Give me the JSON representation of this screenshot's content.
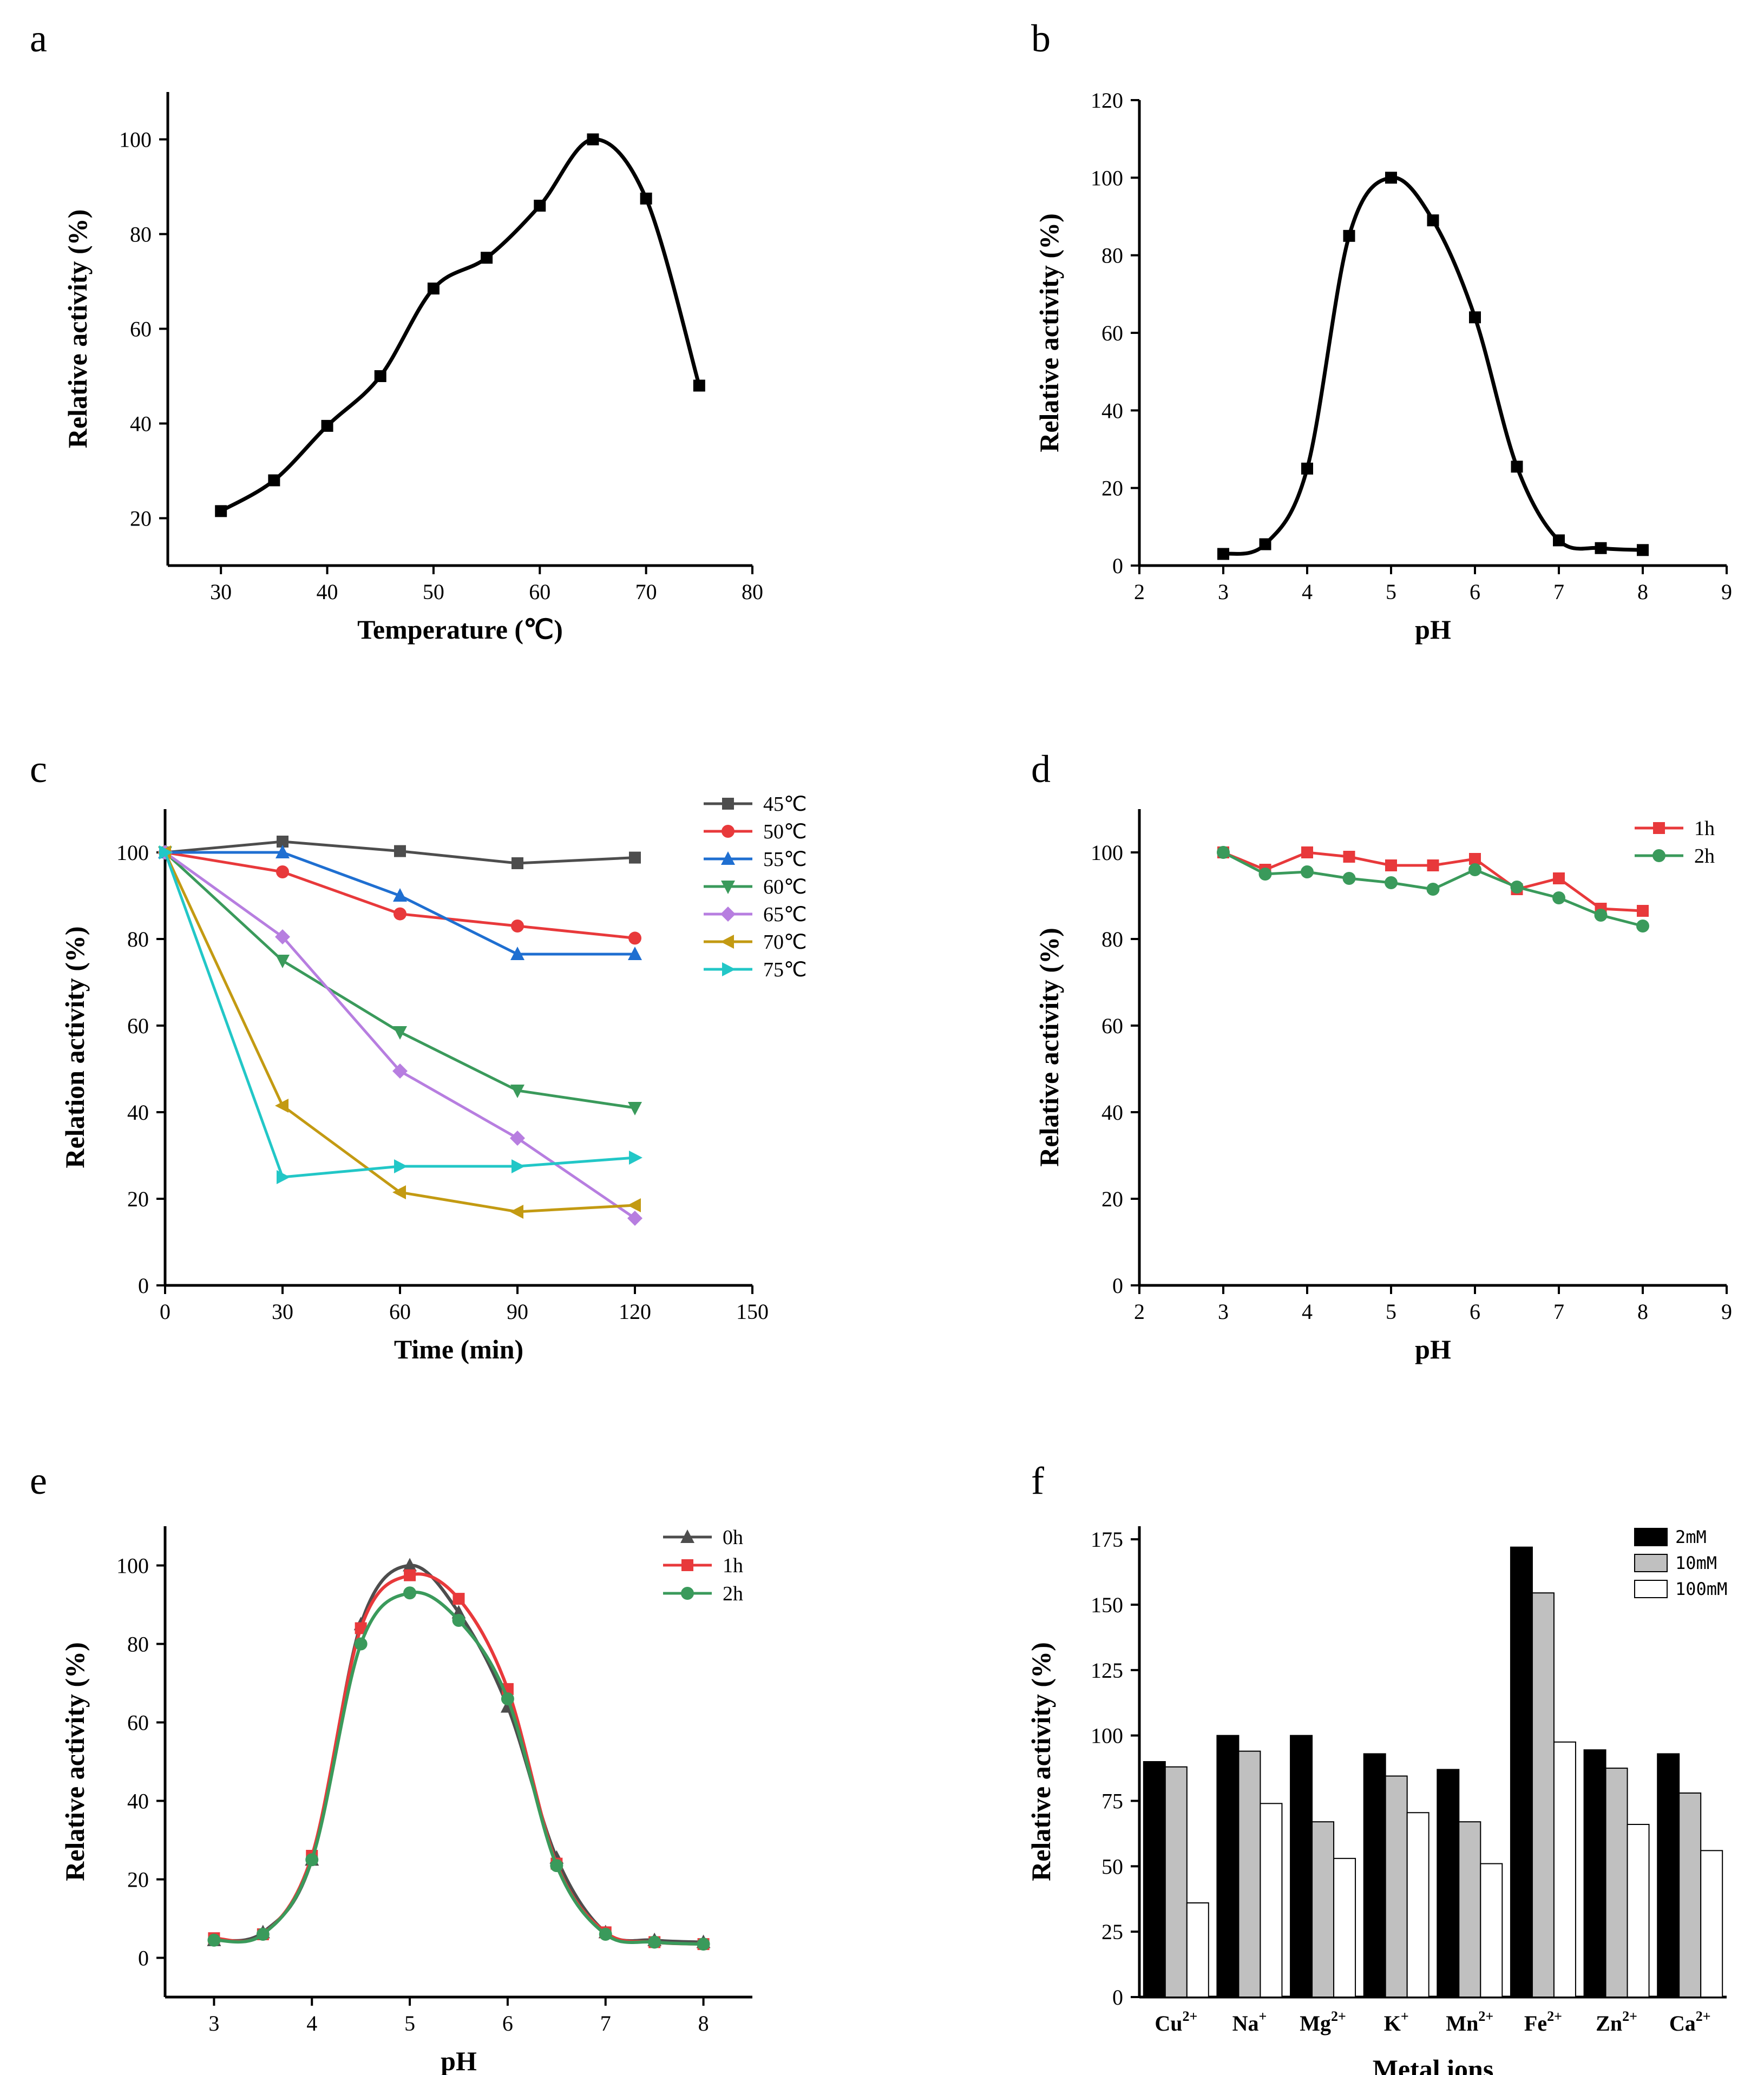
{
  "chart_data": [
    {
      "panel": "a",
      "type": "line",
      "xlabel": "Temperature (℃)",
      "ylabel": "Relative activity (%)",
      "xlim": [
        25,
        80
      ],
      "ylim": [
        10,
        110
      ],
      "xticks": [
        30,
        40,
        50,
        60,
        70,
        80
      ],
      "yticks": [
        20,
        40,
        60,
        80,
        100
      ],
      "series": [
        {
          "name": "activity",
          "color": "#000000",
          "marker": "square",
          "x": [
            30,
            35,
            40,
            45,
            50,
            55,
            60,
            65,
            70,
            75
          ],
          "y": [
            21.5,
            28,
            39.5,
            50,
            68.5,
            75,
            86,
            100,
            87.5,
            48
          ]
        }
      ]
    },
    {
      "panel": "b",
      "type": "line",
      "xlabel": "pH",
      "ylabel": "Relative activity (%)",
      "xlim": [
        2,
        9
      ],
      "ylim": [
        0,
        120
      ],
      "xticks": [
        2,
        3,
        4,
        5,
        6,
        7,
        8,
        9
      ],
      "yticks": [
        0,
        20,
        40,
        60,
        80,
        100,
        120
      ],
      "series": [
        {
          "name": "activity",
          "color": "#000000",
          "marker": "square",
          "x": [
            3,
            3.5,
            4,
            4.5,
            5,
            5.5,
            6,
            6.5,
            7,
            7.5,
            8
          ],
          "y": [
            3,
            5.5,
            25,
            85,
            100,
            89,
            64,
            25.5,
            6.5,
            4.5,
            4
          ]
        }
      ]
    },
    {
      "panel": "c",
      "type": "line",
      "xlabel": "Time (min)",
      "ylabel": "Relation activity (%)",
      "xlim": [
        0,
        150
      ],
      "ylim": [
        0,
        110
      ],
      "xticks": [
        0,
        30,
        60,
        90,
        120,
        150
      ],
      "yticks": [
        0,
        20,
        40,
        60,
        80,
        100
      ],
      "x": [
        0,
        30,
        60,
        90,
        120
      ],
      "series": [
        {
          "name": "45℃",
          "color": "#4d4d4d",
          "marker": "square",
          "values": [
            100,
            102.5,
            100.3,
            97.5,
            98.8
          ]
        },
        {
          "name": "50℃",
          "color": "#e8393b",
          "marker": "circle",
          "values": [
            100,
            95.5,
            85.8,
            83,
            80.2
          ]
        },
        {
          "name": "55℃",
          "color": "#1f6fd1",
          "marker": "triangle-up",
          "values": [
            100,
            100,
            90,
            76.5,
            76.5
          ]
        },
        {
          "name": "60℃",
          "color": "#3a9a5b",
          "marker": "triangle-down",
          "values": [
            100,
            75,
            58.5,
            45,
            41
          ]
        },
        {
          "name": "65℃",
          "color": "#b77ee0",
          "marker": "diamond",
          "values": [
            100,
            80.5,
            49.5,
            34,
            15.5
          ]
        },
        {
          "name": "70℃",
          "color": "#c39a12",
          "marker": "triangle-left",
          "values": [
            100,
            41.5,
            21.5,
            17,
            18.5
          ]
        },
        {
          "name": "75℃",
          "color": "#22c7c7",
          "marker": "triangle-right",
          "values": [
            100,
            25,
            27.5,
            27.5,
            29.5
          ]
        }
      ]
    },
    {
      "panel": "d",
      "type": "line",
      "xlabel": "pH",
      "ylabel": "Relative activity (%)",
      "xlim": [
        2,
        9
      ],
      "ylim": [
        0,
        110
      ],
      "xticks": [
        2,
        3,
        4,
        5,
        6,
        7,
        8,
        9
      ],
      "yticks": [
        0,
        20,
        40,
        60,
        80,
        100
      ],
      "x": [
        3,
        3.5,
        4,
        4.5,
        5,
        5.5,
        6,
        6.5,
        7,
        7.5,
        8
      ],
      "series": [
        {
          "name": "1h",
          "color": "#e8393b",
          "marker": "square",
          "values": [
            100,
            96,
            100,
            99,
            97,
            97,
            98.5,
            91.5,
            94,
            87,
            86.5
          ]
        },
        {
          "name": "2h",
          "color": "#3a9a5b",
          "marker": "circle",
          "values": [
            100,
            95,
            95.5,
            94,
            93,
            91.5,
            96,
            92,
            89.5,
            85.5,
            83
          ]
        }
      ]
    },
    {
      "panel": "e",
      "type": "line",
      "xlabel": "pH",
      "ylabel": "Relative activity (%)",
      "xlim": [
        2.5,
        8.5
      ],
      "ylim": [
        -10,
        110
      ],
      "xticks": [
        3,
        4,
        5,
        6,
        7,
        8
      ],
      "yticks": [
        0,
        20,
        40,
        60,
        80,
        100
      ],
      "x": [
        3,
        3.5,
        4,
        4.5,
        5,
        5.5,
        6,
        6.5,
        7,
        7.5,
        8
      ],
      "series": [
        {
          "name": "0h",
          "color": "#4d4d4d",
          "marker": "triangle-up",
          "values": [
            4.5,
            6.5,
            25,
            85,
            100,
            88,
            64,
            25.5,
            6.5,
            4.5,
            4
          ]
        },
        {
          "name": "1h",
          "color": "#e8393b",
          "marker": "square",
          "values": [
            5,
            6,
            26,
            84,
            97.5,
            91.5,
            68.5,
            24,
            6.5,
            4,
            3.5
          ]
        },
        {
          "name": "2h",
          "color": "#3a9a5b",
          "marker": "circle",
          "values": [
            4.5,
            6,
            25,
            80,
            93,
            86,
            66,
            23.5,
            6,
            4,
            3.5
          ]
        }
      ]
    },
    {
      "panel": "f",
      "type": "bar",
      "xlabel": "Metal ions",
      "ylabel": "Relative activity (%)",
      "ylim": [
        0,
        180
      ],
      "yticks": [
        0,
        25,
        50,
        75,
        100,
        125,
        150,
        175
      ],
      "categories": [
        {
          "base": "Cu",
          "sup": "2+"
        },
        {
          "base": "Na",
          "sup": "+"
        },
        {
          "base": "Mg",
          "sup": "2+"
        },
        {
          "base": "K",
          "sup": "+"
        },
        {
          "base": "Mn",
          "sup": "2+"
        },
        {
          "base": "Fe",
          "sup": "2+"
        },
        {
          "base": "Zn",
          "sup": "2+"
        },
        {
          "base": "Ca",
          "sup": "2+"
        }
      ],
      "series": [
        {
          "name": "2mM",
          "color": "#000000",
          "values": [
            90,
            100,
            100,
            93,
            87,
            172,
            94.5,
            93
          ]
        },
        {
          "name": "10mM",
          "color": "#c0c0c0",
          "values": [
            88,
            94,
            67,
            84.5,
            67,
            154.5,
            87.5,
            78
          ]
        },
        {
          "name": "100mM",
          "color": "#ffffff",
          "values": [
            36,
            74,
            53,
            70.5,
            51,
            97.5,
            66,
            56
          ]
        }
      ]
    }
  ]
}
